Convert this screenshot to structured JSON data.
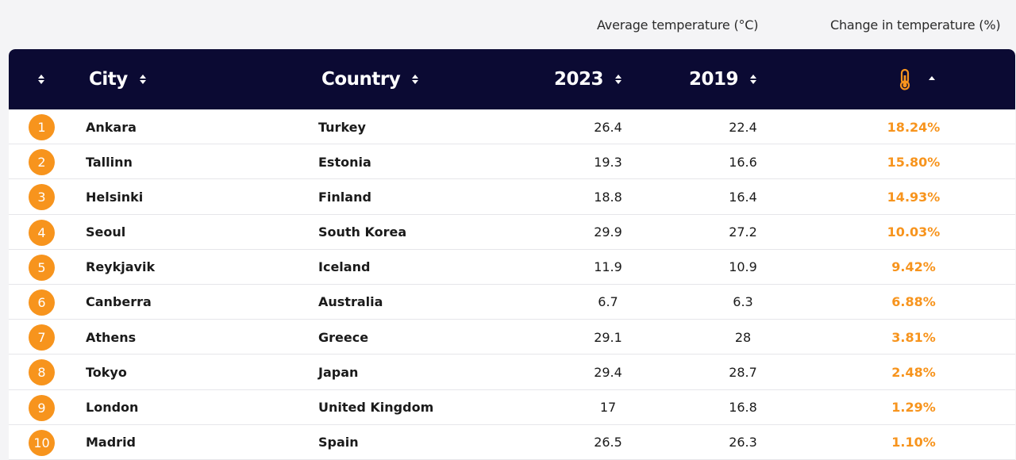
{
  "header": {
    "group_avg": "Average temperature (°C)",
    "group_change": "Change in temperature (%)"
  },
  "columns": {
    "city": "City",
    "country": "Country",
    "y2023": "2023",
    "y2019": "2019",
    "change_icon": "thermometer-icon"
  },
  "colors": {
    "header_bg": "#0b0a33",
    "accent": "#f7941d"
  },
  "rows": [
    {
      "rank": "1",
      "city": "Ankara",
      "country": "Turkey",
      "y2023": "26.4",
      "y2019": "22.4",
      "change": "18.24%"
    },
    {
      "rank": "2",
      "city": "Tallinn",
      "country": "Estonia",
      "y2023": "19.3",
      "y2019": "16.6",
      "change": "15.80%"
    },
    {
      "rank": "3",
      "city": "Helsinki",
      "country": "Finland",
      "y2023": "18.8",
      "y2019": "16.4",
      "change": "14.93%"
    },
    {
      "rank": "4",
      "city": "Seoul",
      "country": "South Korea",
      "y2023": "29.9",
      "y2019": "27.2",
      "change": "10.03%"
    },
    {
      "rank": "5",
      "city": "Reykjavik",
      "country": "Iceland",
      "y2023": "11.9",
      "y2019": "10.9",
      "change": "9.42%"
    },
    {
      "rank": "6",
      "city": "Canberra",
      "country": "Australia",
      "y2023": "6.7",
      "y2019": "6.3",
      "change": "6.88%"
    },
    {
      "rank": "7",
      "city": "Athens",
      "country": "Greece",
      "y2023": "29.1",
      "y2019": "28",
      "change": "3.81%"
    },
    {
      "rank": "8",
      "city": "Tokyo",
      "country": "Japan",
      "y2023": "29.4",
      "y2019": "28.7",
      "change": "2.48%"
    },
    {
      "rank": "9",
      "city": "London",
      "country": "United Kingdom",
      "y2023": "17",
      "y2019": "16.8",
      "change": "1.29%"
    },
    {
      "rank": "10",
      "city": "Madrid",
      "country": "Spain",
      "y2023": "26.5",
      "y2019": "26.3",
      "change": "1.10%"
    }
  ]
}
